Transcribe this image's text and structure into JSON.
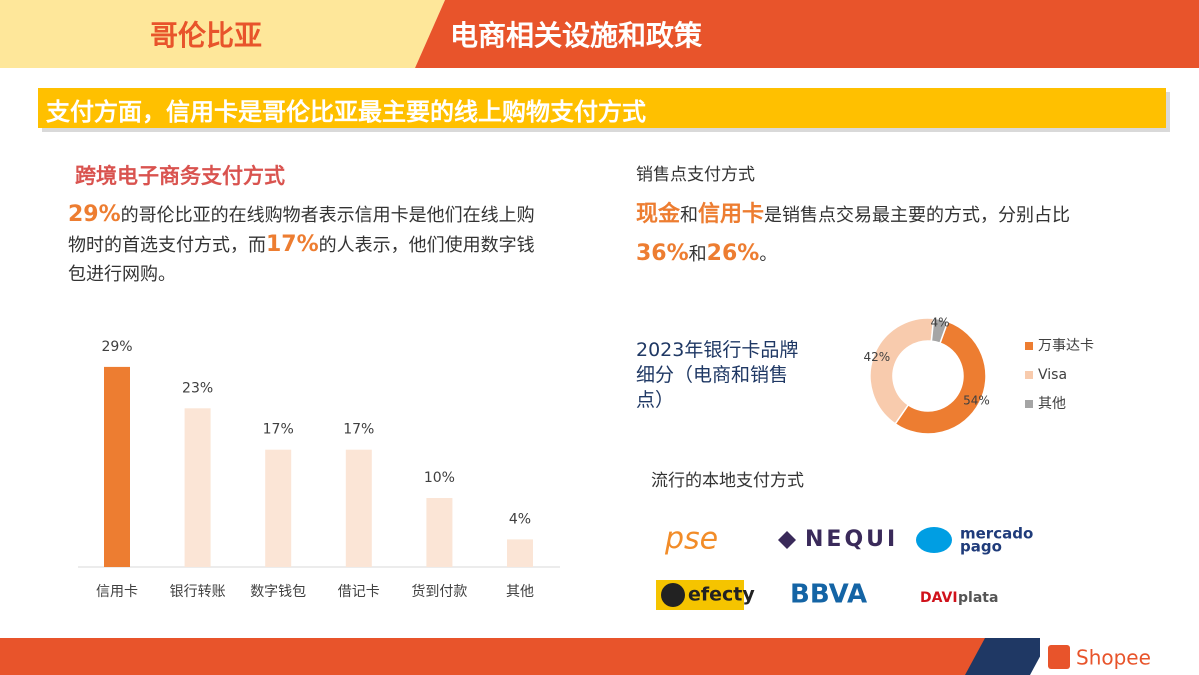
{
  "header": {
    "country": "哥伦比亚",
    "topic": "电商相关设施和政策"
  },
  "banner": "支付方面，信用卡是哥伦比亚最主要的线上购物支付方式",
  "left": {
    "title": "跨境电子商务支付方式",
    "paragraph": [
      {
        "text": "29%",
        "em": true
      },
      {
        "text": "的哥伦比亚的在线购物者表示信用卡是他们在线上购物时的首选支付方式，而"
      },
      {
        "text": "17%",
        "em": true
      },
      {
        "text": "的人表示，他们使用数字钱包进行网购。"
      }
    ]
  },
  "right": {
    "title": "销售点支付方式",
    "paragraph": [
      {
        "text": "现金",
        "em": true
      },
      {
        "text": "和"
      },
      {
        "text": "信用卡",
        "em": true
      },
      {
        "text": "是销售点交易最主要的方式，分别占比"
      },
      {
        "text": "36%",
        "em": true
      },
      {
        "text": "和"
      },
      {
        "text": "26%",
        "em": true
      },
      {
        "text": "。"
      }
    ]
  },
  "chart_data": [
    {
      "type": "bar",
      "categories": [
        "信用卡",
        "银行转账",
        "数字钱包",
        "借记卡",
        "货到付款",
        "其他"
      ],
      "values": [
        29,
        23,
        17,
        17,
        10,
        4
      ],
      "value_labels": [
        "29%",
        "23%",
        "17%",
        "17%",
        "10%",
        "4%"
      ],
      "colors": [
        "#ED7D31",
        "#FBE5D6",
        "#FBE5D6",
        "#FBE5D6",
        "#FBE5D6",
        "#FBE5D6"
      ]
    },
    {
      "type": "pie",
      "title": "2023年银行卡品牌细分（电商和销售点）",
      "donut": true,
      "categories": [
        "万事达卡",
        "Visa",
        "其他"
      ],
      "values": [
        54,
        42,
        4
      ],
      "value_labels": [
        "54%",
        "42%",
        "4%"
      ],
      "colors": [
        "#ED7D31",
        "#F8CBAD",
        "#A5A5A5"
      ],
      "legend": "right"
    }
  ],
  "logos": {
    "title": "流行的本地支付方式",
    "items": [
      [
        "pse"
      ],
      [
        "NEQUI"
      ],
      [
        "mercado",
        "pago"
      ],
      [
        "efecty"
      ],
      [
        "BBVA"
      ],
      [
        "DAVI",
        "plata"
      ]
    ]
  },
  "footer": "Shopee"
}
